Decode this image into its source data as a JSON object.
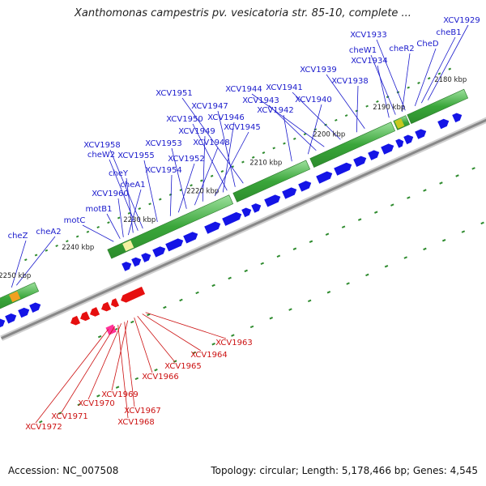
{
  "title": "Xanthomonas campestris pv. vesicatoria str. 85-10, complete ...",
  "footer": {
    "accession": "Accession: NC_007508",
    "summary": "Topology: circular; Length: 5,178,466 bp; Genes: 4,545"
  },
  "colors": {
    "forward_label": "#1a1acc",
    "reverse_label": "#cc1111",
    "forward_gene": "#1414e6",
    "reverse_gene": "#e60f0f",
    "backbone": "#888888",
    "tick": "#2e8b2e",
    "rna_highlight": "#ff3399"
  },
  "scale_labels": [
    "2180 kbp",
    "2190 kbp",
    "2200 kbp",
    "2210 kbp",
    "2220 kbp",
    "2230 kbp",
    "2240 kbp",
    "2250 kbp"
  ],
  "forward_genes": [
    "XCV1929",
    "cheB1",
    "CheD",
    "XCV1933",
    "cheR2",
    "cheW1",
    "XCV1934",
    "XCV1939",
    "XCV1938",
    "XCV1941",
    "XCV1944",
    "XCV1943",
    "XCV1940",
    "XCV1951",
    "XCV1942",
    "XCV1947",
    "XCV1950",
    "XCV1946",
    "XCV1945",
    "XCV1949",
    "XCV1953",
    "XCV1948",
    "XCV1958",
    "cheW2",
    "XCV1955",
    "XCV1952",
    "XCV1954",
    "cheY",
    "cheA1",
    "XCV1960",
    "motB1",
    "motC",
    "cheZ",
    "cheA2"
  ],
  "reverse_genes": [
    "XCV1963",
    "XCV1964",
    "XCV1965",
    "XCV1966",
    "XCV1969",
    "XCV1970",
    "XCV1967",
    "XCV1971",
    "XCV1968",
    "XCV1972"
  ]
}
